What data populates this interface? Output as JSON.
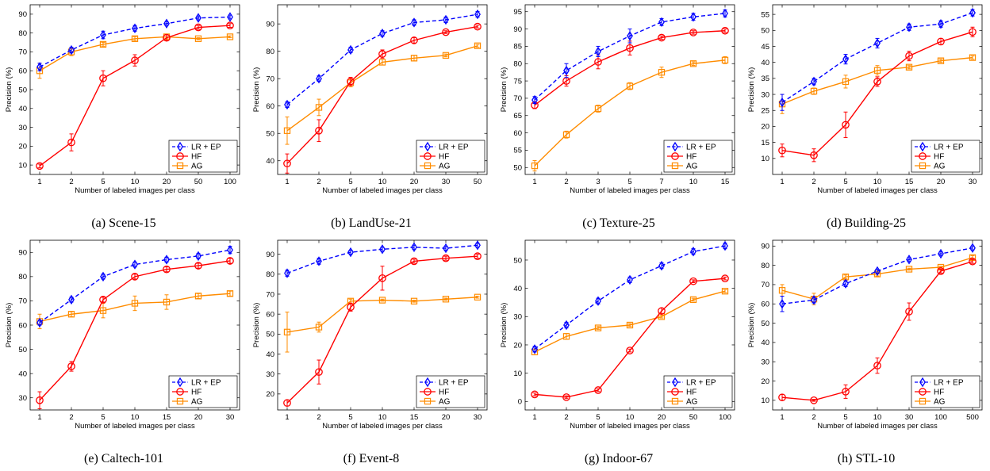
{
  "chart_data": [
    {
      "type": "line",
      "caption": "(a) Scene-15",
      "categories": [
        "1",
        "2",
        "5",
        "10",
        "20",
        "50",
        "100"
      ],
      "xlabel": "Number of labeled images per class",
      "ylabel": "Precision (%)",
      "ylim": [
        5,
        95
      ],
      "yticks": [
        10,
        20,
        30,
        40,
        50,
        60,
        70,
        80,
        90
      ],
      "legend_position": "bottom-right",
      "series": [
        {
          "name": "LR + EP",
          "color": "#0000ff",
          "marker": "diamond",
          "dashed": true,
          "values": [
            62,
            71,
            79,
            82.5,
            85,
            88,
            88.5
          ],
          "errors": [
            2,
            1.5,
            2,
            1.5,
            1,
            1,
            1
          ]
        },
        {
          "name": "HF",
          "color": "#ff0000",
          "marker": "circle",
          "dashed": false,
          "values": [
            9.5,
            22,
            56,
            65.5,
            77.5,
            83,
            84
          ],
          "errors": [
            1,
            4.5,
            4,
            3,
            1.5,
            1,
            1
          ]
        },
        {
          "name": "AG",
          "color": "#ff8c00",
          "marker": "square",
          "dashed": false,
          "values": [
            60,
            70,
            74,
            77,
            78,
            77,
            78
          ],
          "errors": [
            4,
            2,
            1,
            1,
            1,
            0.5,
            0.5
          ]
        }
      ]
    },
    {
      "type": "line",
      "caption": "(b) LandUse-21",
      "categories": [
        "1",
        "2",
        "5",
        "10",
        "20",
        "30",
        "50"
      ],
      "xlabel": "Number of labeled images per class",
      "ylabel": "Precision (%)",
      "ylim": [
        35,
        97
      ],
      "yticks": [
        40,
        50,
        60,
        70,
        80,
        90
      ],
      "legend_position": "bottom-right",
      "series": [
        {
          "name": "LR + EP",
          "color": "#0000ff",
          "marker": "diamond",
          "dashed": true,
          "values": [
            60.5,
            70,
            80.5,
            86.5,
            90.5,
            91.5,
            93.5
          ],
          "errors": [
            1,
            1,
            1,
            1,
            1,
            1,
            1
          ]
        },
        {
          "name": "HF",
          "color": "#ff0000",
          "marker": "circle",
          "dashed": false,
          "values": [
            39,
            51,
            69,
            79,
            84,
            87,
            89
          ],
          "errors": [
            3.5,
            4,
            1.5,
            1.5,
            1,
            0.5,
            0.5
          ]
        },
        {
          "name": "AG",
          "color": "#ff8c00",
          "marker": "square",
          "dashed": false,
          "values": [
            51,
            59.5,
            68.5,
            76,
            77.5,
            78.5,
            82
          ],
          "errors": [
            5,
            3,
            1.5,
            1,
            1,
            0.5,
            0.5
          ]
        }
      ]
    },
    {
      "type": "line",
      "caption": "(c) Texture-25",
      "categories": [
        "1",
        "2",
        "3",
        "5",
        "7",
        "10",
        "15"
      ],
      "xlabel": "Number of labeled images per class",
      "ylabel": "Precision (%)",
      "ylim": [
        48,
        97
      ],
      "yticks": [
        50,
        55,
        60,
        65,
        70,
        75,
        80,
        85,
        90,
        95
      ],
      "legend_position": "bottom-right",
      "series": [
        {
          "name": "LR + EP",
          "color": "#0000ff",
          "marker": "diamond",
          "dashed": true,
          "values": [
            69.5,
            78,
            83.5,
            88,
            92,
            93.5,
            94.5
          ],
          "errors": [
            1,
            2,
            1.5,
            2,
            1,
            1,
            1
          ]
        },
        {
          "name": "HF",
          "color": "#ff0000",
          "marker": "circle",
          "dashed": false,
          "values": [
            68,
            75,
            80.5,
            84.5,
            87.5,
            89,
            89.5
          ],
          "errors": [
            1,
            1.5,
            2,
            2,
            0.5,
            0.5,
            0.5
          ]
        },
        {
          "name": "AG",
          "color": "#ff8c00",
          "marker": "square",
          "dashed": false,
          "values": [
            50.5,
            59.5,
            67,
            73.5,
            77.5,
            80,
            81
          ],
          "errors": [
            1.5,
            1,
            1,
            1,
            1.5,
            0.5,
            1
          ]
        }
      ]
    },
    {
      "type": "line",
      "caption": "(d) Building-25",
      "categories": [
        "1",
        "2",
        "5",
        "10",
        "15",
        "20",
        "30"
      ],
      "xlabel": "Number of labeled images per class",
      "ylabel": "Precision (%)",
      "ylim": [
        5,
        58
      ],
      "yticks": [
        10,
        15,
        20,
        25,
        30,
        35,
        40,
        45,
        50,
        55
      ],
      "legend_position": "bottom-right",
      "series": [
        {
          "name": "LR + EP",
          "color": "#0000ff",
          "marker": "diamond",
          "dashed": true,
          "values": [
            27.5,
            34,
            41,
            46,
            51,
            52,
            55.5
          ],
          "errors": [
            2.5,
            1,
            1.5,
            1.5,
            1,
            1,
            1
          ]
        },
        {
          "name": "HF",
          "color": "#ff0000",
          "marker": "circle",
          "dashed": false,
          "values": [
            12.5,
            11,
            20.5,
            34,
            42,
            46.5,
            49.5
          ],
          "errors": [
            2,
            2,
            4,
            1.5,
            1.5,
            1,
            1.5
          ]
        },
        {
          "name": "AG",
          "color": "#ff8c00",
          "marker": "square",
          "dashed": false,
          "values": [
            27,
            31,
            34,
            37.5,
            38.5,
            40.5,
            41.5
          ],
          "errors": [
            3,
            1,
            2,
            1.5,
            0.5,
            0.5,
            0.5
          ]
        }
      ]
    },
    {
      "type": "line",
      "caption": "(e) Caltech-101",
      "categories": [
        "1",
        "2",
        "5",
        "10",
        "15",
        "20",
        "30"
      ],
      "xlabel": "Number of labeled images per class",
      "ylabel": "Precision (%)",
      "ylim": [
        25,
        95
      ],
      "yticks": [
        30,
        40,
        50,
        60,
        70,
        80,
        90
      ],
      "legend_position": "bottom-right",
      "series": [
        {
          "name": "LR + EP",
          "color": "#0000ff",
          "marker": "diamond",
          "dashed": true,
          "values": [
            61,
            70.5,
            80,
            85,
            87,
            88.5,
            91
          ],
          "errors": [
            1,
            1,
            1,
            1,
            1,
            1,
            1.5
          ]
        },
        {
          "name": "HF",
          "color": "#ff0000",
          "marker": "circle",
          "dashed": false,
          "values": [
            29,
            43,
            70.5,
            80,
            83,
            84.5,
            86.5
          ],
          "errors": [
            3.5,
            2,
            1,
            1,
            1,
            1,
            1
          ]
        },
        {
          "name": "AG",
          "color": "#ff8c00",
          "marker": "square",
          "dashed": false,
          "values": [
            61.5,
            64.5,
            66,
            69,
            69.5,
            72,
            73
          ],
          "errors": [
            3,
            1,
            3,
            3,
            3,
            1,
            1
          ]
        }
      ]
    },
    {
      "type": "line",
      "caption": "(f) Event-8",
      "categories": [
        "1",
        "2",
        "5",
        "10",
        "15",
        "20",
        "30"
      ],
      "xlabel": "Number of labeled images per class",
      "ylabel": "Precision (%)",
      "ylim": [
        12,
        97
      ],
      "yticks": [
        20,
        30,
        40,
        50,
        60,
        70,
        80,
        90
      ],
      "legend_position": "bottom-right",
      "series": [
        {
          "name": "LR + EP",
          "color": "#0000ff",
          "marker": "diamond",
          "dashed": true,
          "values": [
            80.5,
            86.5,
            91,
            92.5,
            93.5,
            93,
            94.5
          ],
          "errors": [
            1.5,
            1.5,
            1,
            1,
            1,
            1,
            1
          ]
        },
        {
          "name": "HF",
          "color": "#ff0000",
          "marker": "circle",
          "dashed": false,
          "values": [
            15.5,
            31,
            63.5,
            78,
            86.5,
            88,
            89
          ],
          "errors": [
            1.5,
            6,
            2,
            6,
            1,
            1,
            1
          ]
        },
        {
          "name": "AG",
          "color": "#ff8c00",
          "marker": "square",
          "dashed": false,
          "values": [
            51,
            53.5,
            66.5,
            67,
            66.5,
            67.5,
            68.5
          ],
          "errors": [
            10,
            2.5,
            1,
            0.5,
            0.5,
            0.5,
            0.5
          ]
        }
      ]
    },
    {
      "type": "line",
      "caption": "(g) Indoor-67",
      "categories": [
        "1",
        "2",
        "5",
        "10",
        "20",
        "50",
        "100"
      ],
      "xlabel": "Number of labeled images per class",
      "ylabel": "Precision (%)",
      "ylim": [
        -3,
        57
      ],
      "yticks": [
        0,
        10,
        20,
        30,
        40,
        50
      ],
      "legend_position": "bottom-right",
      "series": [
        {
          "name": "LR + EP",
          "color": "#0000ff",
          "marker": "diamond",
          "dashed": true,
          "values": [
            18.5,
            27,
            35.5,
            43,
            48,
            53,
            55
          ],
          "errors": [
            1,
            1,
            1,
            1,
            1,
            1,
            1
          ]
        },
        {
          "name": "HF",
          "color": "#ff0000",
          "marker": "circle",
          "dashed": false,
          "values": [
            2.5,
            1.5,
            4,
            18,
            32,
            42.5,
            43.5
          ],
          "errors": [
            0.5,
            0.5,
            0.5,
            0.5,
            1,
            0.5,
            0.5
          ]
        },
        {
          "name": "AG",
          "color": "#ff8c00",
          "marker": "square",
          "dashed": false,
          "values": [
            17.5,
            23,
            26,
            27,
            30,
            36,
            39
          ],
          "errors": [
            1,
            1,
            0.5,
            0.5,
            0.5,
            0.5,
            0.5
          ]
        }
      ]
    },
    {
      "type": "line",
      "caption": "(h) STL-10",
      "categories": [
        "1",
        "2",
        "5",
        "10",
        "30",
        "100",
        "500"
      ],
      "xlabel": "Number of labeled images per class",
      "ylabel": "Precision (%)",
      "ylim": [
        5,
        93
      ],
      "yticks": [
        10,
        20,
        30,
        40,
        50,
        60,
        70,
        80,
        90
      ],
      "legend_position": "bottom-right",
      "series": [
        {
          "name": "LR + EP",
          "color": "#0000ff",
          "marker": "diamond",
          "dashed": true,
          "values": [
            60,
            62,
            70.5,
            77,
            83,
            86,
            89
          ],
          "errors": [
            4,
            1.5,
            1.5,
            1,
            1,
            1,
            1
          ]
        },
        {
          "name": "HF",
          "color": "#ff0000",
          "marker": "circle",
          "dashed": false,
          "values": [
            11.5,
            10,
            14.5,
            28,
            56,
            77,
            82
          ],
          "errors": [
            1.5,
            0.5,
            3.5,
            4,
            4.5,
            1,
            1
          ]
        },
        {
          "name": "AG",
          "color": "#ff8c00",
          "marker": "square",
          "dashed": false,
          "values": [
            67,
            62.5,
            74,
            75.5,
            78,
            79,
            84
          ],
          "errors": [
            3,
            3,
            1,
            1,
            0.5,
            0.5,
            1
          ]
        }
      ]
    }
  ]
}
